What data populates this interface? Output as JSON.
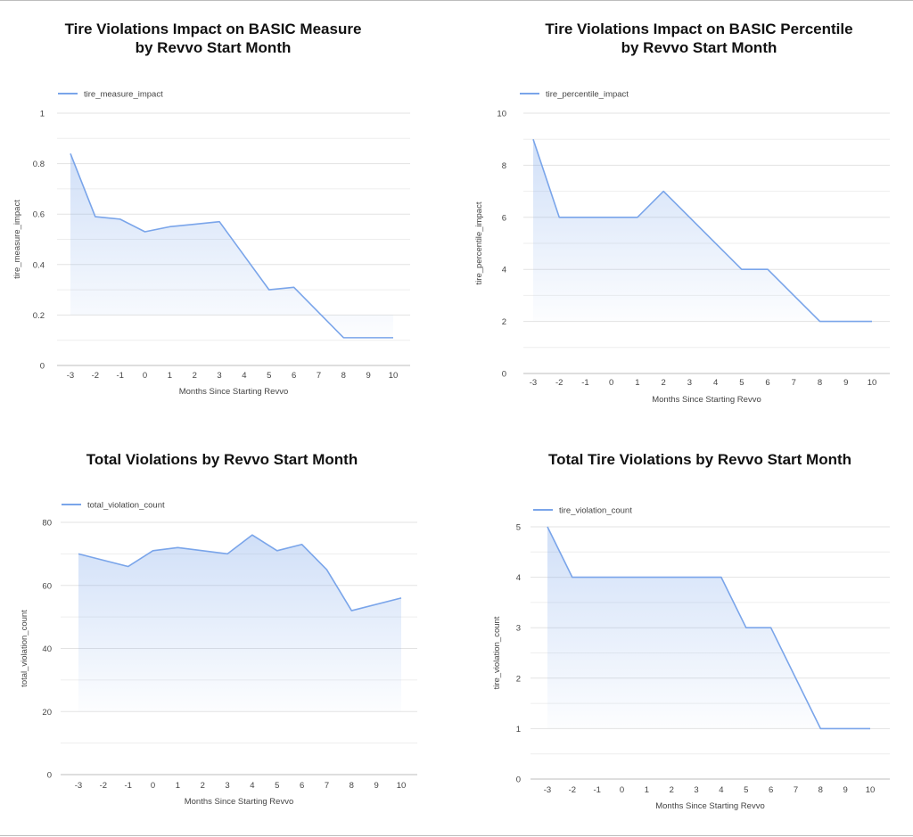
{
  "chart_data": [
    {
      "type": "area",
      "title_lines": [
        "Tire Violations Impact on BASIC Measure",
        "by Revvo Start Month"
      ],
      "xlabel": "Months Since Starting Revvo",
      "ylabel": "tire_measure_impact",
      "legend": "top-left",
      "grid": true,
      "ylim": [
        0,
        1
      ],
      "yticks": [
        0,
        0.2,
        0.4,
        0.6,
        0.8,
        1
      ],
      "ytick_labels": [
        "0",
        "0.2",
        "0.4",
        "0.6",
        "0.8",
        "1"
      ],
      "x": [
        -3,
        -2,
        -1,
        0,
        1,
        2,
        3,
        4,
        5,
        6,
        7,
        8,
        9,
        10
      ],
      "x_labels": [
        "-3",
        "-2",
        "-1",
        "0",
        "1",
        "2",
        "3",
        "4",
        "5",
        "6",
        "7",
        "8",
        "9",
        "10"
      ],
      "points": [
        [
          -3,
          0.84
        ],
        [
          -2,
          0.59
        ],
        [
          -1,
          0.58
        ],
        [
          0,
          0.53
        ],
        [
          1,
          0.55
        ],
        [
          2,
          0.56
        ],
        [
          3,
          0.57
        ],
        [
          5,
          0.3
        ],
        [
          6,
          0.31
        ],
        [
          8,
          0.11
        ],
        [
          9,
          0.11
        ],
        [
          10,
          0.11
        ]
      ],
      "series": [
        {
          "name": "tire_measure_impact",
          "color": "#7aa5ea"
        }
      ]
    },
    {
      "type": "area",
      "title_lines": [
        "Tire Violations Impact on BASIC Percentile",
        "by Revvo Start Month"
      ],
      "xlabel": "Months Since Starting Revvo",
      "ylabel": "tire_percentile_impact",
      "legend": "top-left",
      "grid": true,
      "ylim": [
        0,
        10
      ],
      "yticks": [
        0,
        2,
        4,
        6,
        8,
        10
      ],
      "ytick_labels": [
        "0",
        "2",
        "4",
        "6",
        "8",
        "10"
      ],
      "x": [
        -3,
        -2,
        -1,
        0,
        1,
        2,
        3,
        4,
        5,
        6,
        7,
        8,
        9,
        10
      ],
      "x_labels": [
        "-3",
        "-2",
        "-1",
        "0",
        "1",
        "2",
        "3",
        "4",
        "5",
        "6",
        "7",
        "8",
        "9",
        "10"
      ],
      "points": [
        [
          -3,
          9
        ],
        [
          -2,
          6
        ],
        [
          -1,
          6
        ],
        [
          0,
          6
        ],
        [
          1,
          6
        ],
        [
          2,
          7
        ],
        [
          5,
          4
        ],
        [
          6,
          4
        ],
        [
          8,
          2
        ],
        [
          9,
          2
        ],
        [
          10,
          2
        ]
      ],
      "series": [
        {
          "name": "tire_percentile_impact",
          "color": "#7aa5ea"
        }
      ]
    },
    {
      "type": "area",
      "title_lines": [
        "Total Violations by Revvo Start Month"
      ],
      "xlabel": "Months Since Starting Revvo",
      "ylabel": "total_violation_count",
      "legend": "top-left",
      "grid": true,
      "ylim": [
        0,
        80
      ],
      "yticks": [
        0,
        20,
        40,
        60,
        80
      ],
      "ytick_labels": [
        "0",
        "20",
        "40",
        "60",
        "80"
      ],
      "x": [
        -3,
        -2,
        -1,
        0,
        1,
        2,
        3,
        4,
        5,
        6,
        7,
        8,
        9,
        10
      ],
      "x_labels": [
        "-3",
        "-2",
        "-1",
        "0",
        "1",
        "2",
        "3",
        "4",
        "5",
        "6",
        "7",
        "8",
        "9",
        "10"
      ],
      "points": [
        [
          -3,
          70
        ],
        [
          -1,
          66
        ],
        [
          0,
          71
        ],
        [
          1,
          72
        ],
        [
          2,
          71
        ],
        [
          3,
          70
        ],
        [
          4,
          76
        ],
        [
          5,
          71
        ],
        [
          6,
          73
        ],
        [
          7,
          65
        ],
        [
          8,
          52
        ],
        [
          10,
          56
        ]
      ],
      "series": [
        {
          "name": "total_violation_count",
          "color": "#7aa5ea"
        }
      ]
    },
    {
      "type": "area",
      "title_lines": [
        "Total Tire Violations by Revvo Start Month"
      ],
      "xlabel": "Months Since Starting Revvo",
      "ylabel": "tire_violation_count",
      "legend": "top-left",
      "grid": true,
      "ylim": [
        0,
        5
      ],
      "yticks": [
        0,
        1,
        2,
        3,
        4,
        5
      ],
      "ytick_labels": [
        "0",
        "1",
        "2",
        "3",
        "4",
        "5"
      ],
      "x": [
        -3,
        -2,
        -1,
        0,
        1,
        2,
        3,
        4,
        5,
        6,
        7,
        8,
        9,
        10
      ],
      "x_labels": [
        "-3",
        "-2",
        "-1",
        "0",
        "1",
        "2",
        "3",
        "4",
        "5",
        "6",
        "7",
        "8",
        "9",
        "10"
      ],
      "points": [
        [
          -3,
          5
        ],
        [
          -2,
          4
        ],
        [
          4,
          4
        ],
        [
          5,
          3
        ],
        [
          6,
          3
        ],
        [
          8,
          1
        ],
        [
          9,
          1
        ],
        [
          10,
          1
        ]
      ],
      "series": [
        {
          "name": "tire_violation_count",
          "color": "#7aa5ea"
        }
      ]
    }
  ]
}
